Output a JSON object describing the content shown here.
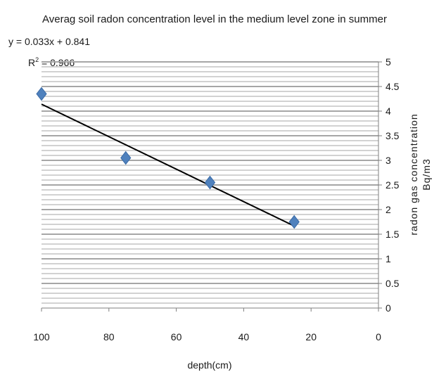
{
  "chart_data": {
    "type": "scatter",
    "title": "Averag soil radon concentration level in the medium level zone in summer",
    "xlabel": "depth(cm)",
    "ylabel_line1": "radon gas concentration",
    "ylabel_line2": "Bq/m3",
    "x_reversed": true,
    "y_axis_position": "right",
    "xlim": [
      0,
      100
    ],
    "ylim": [
      0,
      5
    ],
    "x_ticks": [
      "100",
      "80",
      "60",
      "40",
      "20",
      "0"
    ],
    "y_ticks": [
      "0",
      "0.5",
      "1",
      "1.5",
      "2",
      "2.5",
      "3",
      "3.5",
      "4",
      "4.5",
      "5"
    ],
    "points": [
      {
        "x": 100,
        "y": 4.35
      },
      {
        "x": 75,
        "y": 3.05
      },
      {
        "x": 50,
        "y": 2.55
      },
      {
        "x": 25,
        "y": 1.75
      }
    ],
    "trendline": {
      "type": "linear",
      "slope": 0.033,
      "intercept": 0.841,
      "x_range": [
        25,
        100
      ],
      "equation_text": "y = 0.033x + 0.841",
      "r2_prefix": "R",
      "r2_sup": "2",
      "r2_suffix": " = 0.966"
    },
    "grid": true,
    "marker_color": "#4f81bd",
    "trend_color": "#000000",
    "grid_color": "#a6a6a6"
  }
}
